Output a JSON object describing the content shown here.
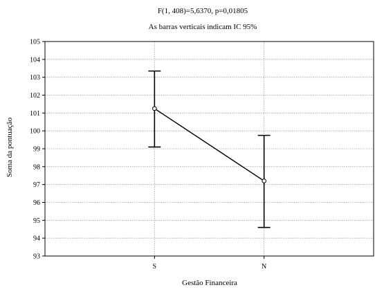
{
  "chart_data": {
    "type": "line",
    "title": "F(1, 408)=5,6370, p=0,01805",
    "subtitle": "As barras verticais indicam IC 95%",
    "xlabel": "Gestão Financeira",
    "ylabel": "Soma da pontuação",
    "categories": [
      "S",
      "N"
    ],
    "series": [
      {
        "values": [
          101.25,
          97.2
        ],
        "ci_lower": [
          99.1,
          94.6
        ],
        "ci_upper": [
          103.35,
          99.75
        ]
      }
    ],
    "ylim": [
      93,
      105
    ],
    "yticks": [
      "93",
      "94",
      "95",
      "96",
      "97",
      "98",
      "99",
      "100",
      "101",
      "102",
      "103",
      "104",
      "105"
    ],
    "grid": true,
    "grid_style": "dotted horizontal and vertical",
    "colors": {
      "line": "#000000",
      "marker_fill": "#ffffff",
      "grid": "#a0a0a0",
      "background": "#ffffff"
    }
  }
}
